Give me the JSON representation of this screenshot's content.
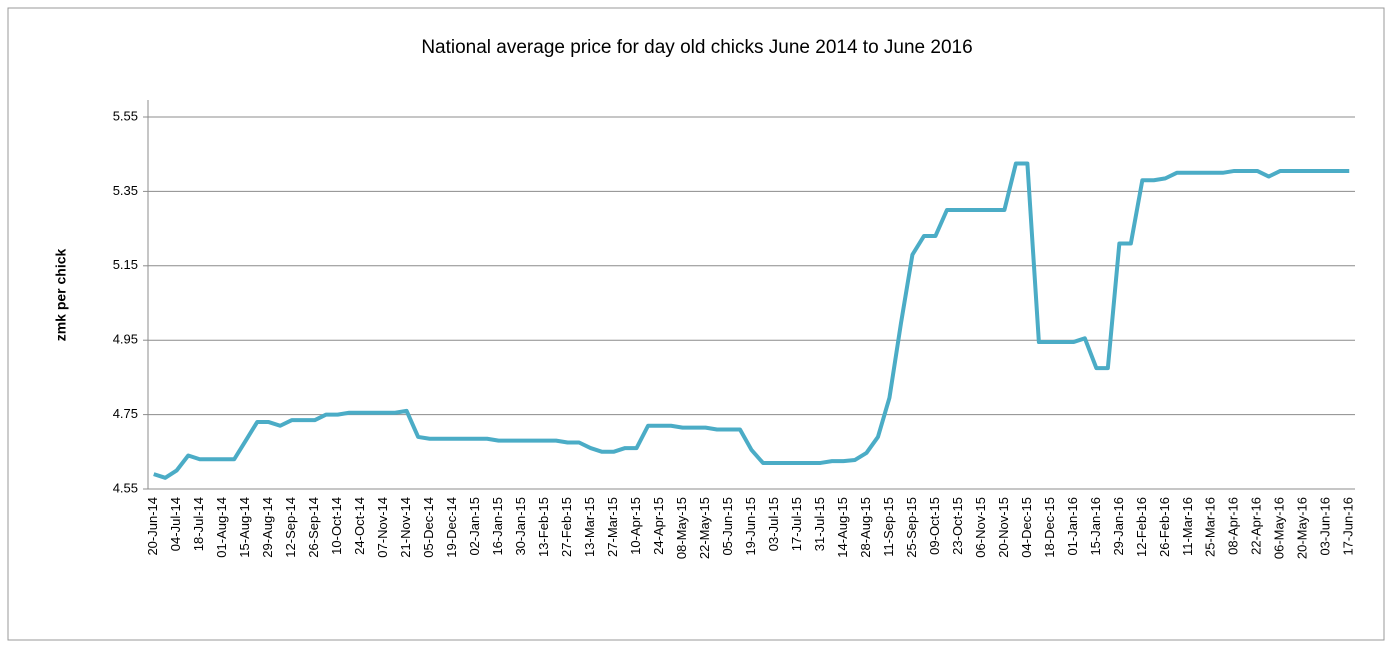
{
  "chart_data": {
    "type": "line",
    "title": "National average price for day old chicks June 2014 to June 2016",
    "y_label": "zmk per chick",
    "categories": [
      "20-Jun-14",
      null,
      "04-Jul-14",
      null,
      "18-Jul-14",
      null,
      "01-Aug-14",
      null,
      "15-Aug-14",
      null,
      "29-Aug-14",
      null,
      "12-Sep-14",
      null,
      "26-Sep-14",
      null,
      "10-Oct-14",
      null,
      "24-Oct-14",
      null,
      "07-Nov-14",
      null,
      "21-Nov-14",
      null,
      "05-Dec-14",
      null,
      "19-Dec-14",
      null,
      "02-Jan-15",
      null,
      "16-Jan-15",
      null,
      "30-Jan-15",
      null,
      "13-Feb-15",
      null,
      "27-Feb-15",
      null,
      "13-Mar-15",
      null,
      "27-Mar-15",
      null,
      "10-Apr-15",
      null,
      "24-Apr-15",
      null,
      "08-May-15",
      null,
      "22-May-15",
      null,
      "05-Jun-15",
      null,
      "19-Jun-15",
      null,
      "03-Jul-15",
      null,
      "17-Jul-15",
      null,
      "31-Jul-15",
      null,
      "14-Aug-15",
      null,
      "28-Aug-15",
      null,
      "11-Sep-15",
      null,
      "25-Sep-15",
      null,
      "09-Oct-15",
      null,
      "23-Oct-15",
      null,
      "06-Nov-15",
      null,
      "20-Nov-15",
      null,
      "04-Dec-15",
      null,
      "18-Dec-15",
      null,
      "01-Jan-16",
      null,
      "15-Jan-16",
      null,
      "29-Jan-16",
      null,
      "12-Feb-16",
      null,
      "26-Feb-16",
      null,
      "11-Mar-16",
      null,
      "25-Mar-16",
      null,
      "08-Apr-16",
      null,
      "22-Apr-16",
      null,
      "06-May-16",
      null,
      "20-May-16",
      null,
      "03-Jun-16",
      null,
      "17-Jun-16"
    ],
    "values": [
      4.59,
      4.58,
      4.6,
      4.64,
      4.63,
      4.63,
      4.63,
      4.63,
      4.68,
      4.73,
      4.73,
      4.72,
      4.735,
      4.735,
      4.735,
      4.75,
      4.75,
      4.755,
      4.755,
      4.755,
      4.755,
      4.755,
      4.76,
      4.69,
      4.685,
      4.685,
      4.685,
      4.685,
      4.685,
      4.685,
      4.68,
      4.68,
      4.68,
      4.68,
      4.68,
      4.68,
      4.675,
      4.675,
      4.66,
      4.65,
      4.65,
      4.66,
      4.66,
      4.72,
      4.72,
      4.72,
      4.715,
      4.715,
      4.715,
      4.71,
      4.71,
      4.71,
      4.655,
      4.62,
      4.62,
      4.62,
      4.62,
      4.62,
      4.62,
      4.625,
      4.625,
      4.628,
      4.647,
      4.69,
      4.795,
      4.995,
      5.18,
      5.23,
      5.23,
      5.3,
      5.3,
      5.3,
      5.3,
      5.3,
      5.3,
      5.425,
      5.425,
      4.945,
      4.945,
      4.945,
      4.945,
      4.955,
      4.875,
      4.875,
      5.21,
      5.21,
      5.38,
      5.38,
      5.385,
      5.4,
      5.4,
      5.4,
      5.4,
      5.4,
      5.405,
      5.405,
      5.405,
      5.39,
      5.405,
      5.405,
      5.405,
      5.405,
      5.405,
      5.405,
      5.405
    ],
    "color": "#4bacc6",
    "ylim": [
      4.55,
      5.55
    ],
    "yticks": [
      4.55,
      4.75,
      4.95,
      5.15,
      5.35,
      5.55
    ],
    "grid": true
  }
}
